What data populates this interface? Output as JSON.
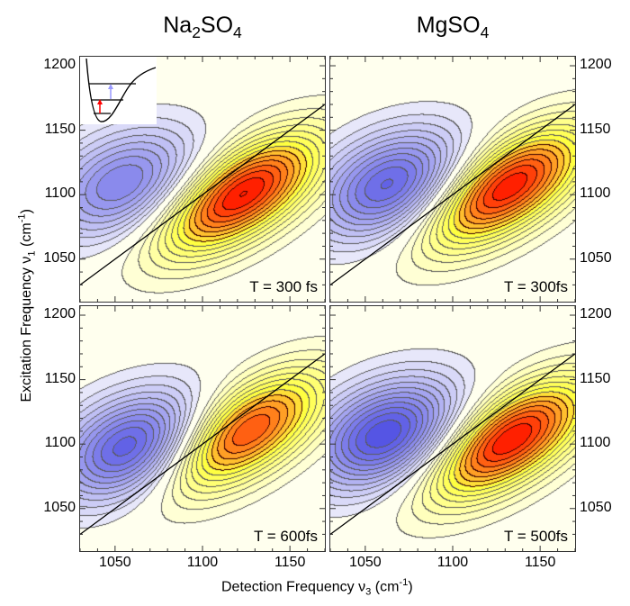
{
  "chart_data": [
    {
      "type": "heatmap",
      "column_title": "Na2SO4",
      "label": "T = 300 fs",
      "peaks": [
        {
          "sign": "positive",
          "detection": 1122,
          "excitation": 1100,
          "amplitude": 1.0
        },
        {
          "sign": "negative",
          "detection": 1055,
          "excitation": 1108,
          "amplitude": -0.6
        }
      ]
    },
    {
      "type": "heatmap",
      "column_title": "MgSO4",
      "label": "T = 300fs",
      "peaks": [
        {
          "sign": "positive",
          "detection": 1130,
          "excitation": 1105,
          "amplitude": 1.0
        },
        {
          "sign": "negative",
          "detection": 1065,
          "excitation": 1107,
          "amplitude": -0.75
        }
      ]
    },
    {
      "type": "heatmap",
      "column_title": "Na2SO4",
      "label": "T = 600fs",
      "peaks": [
        {
          "sign": "positive",
          "detection": 1123,
          "excitation": 1108,
          "amplitude": 0.9
        },
        {
          "sign": "negative",
          "detection": 1060,
          "excitation": 1097,
          "amplitude": -0.8
        }
      ]
    },
    {
      "type": "heatmap",
      "column_title": "MgSO4",
      "label": "T = 500fs",
      "peaks": [
        {
          "sign": "positive",
          "detection": 1132,
          "excitation": 1103,
          "amplitude": 1.0
        },
        {
          "sign": "negative",
          "detection": 1062,
          "excitation": 1107,
          "amplitude": -0.85
        }
      ]
    }
  ],
  "titles": {
    "left": {
      "base": "Na",
      "sub1": "2",
      "mid": "SO",
      "sub2": "4"
    },
    "right": {
      "base": "MgSO",
      "sub": "4"
    }
  },
  "axes": {
    "xlabel": {
      "text": "Detection Frequency ν",
      "sub": "3",
      "unit": " (cm",
      "sup": "-1",
      "close": ")"
    },
    "ylabel": {
      "text": "Excitation Frequency ν",
      "sub": "1",
      "unit": " (cm",
      "sup": "-1",
      "close": ")"
    },
    "xlim": [
      1030,
      1170
    ],
    "ylim": [
      1017,
      1207
    ],
    "xticks": [
      "1050",
      "1100",
      "1150"
    ],
    "yticks": [
      "1200",
      "1150",
      "1100",
      "1050"
    ],
    "diagonal": true
  },
  "colors": {
    "positive_max": "#ff2000",
    "mid": "#ffff40",
    "zero": "#ffffff",
    "negative_max": "#3a3ae0",
    "contour": "#333333",
    "inset_pump": "#ff0000",
    "inset_probe": "#9999ff"
  }
}
